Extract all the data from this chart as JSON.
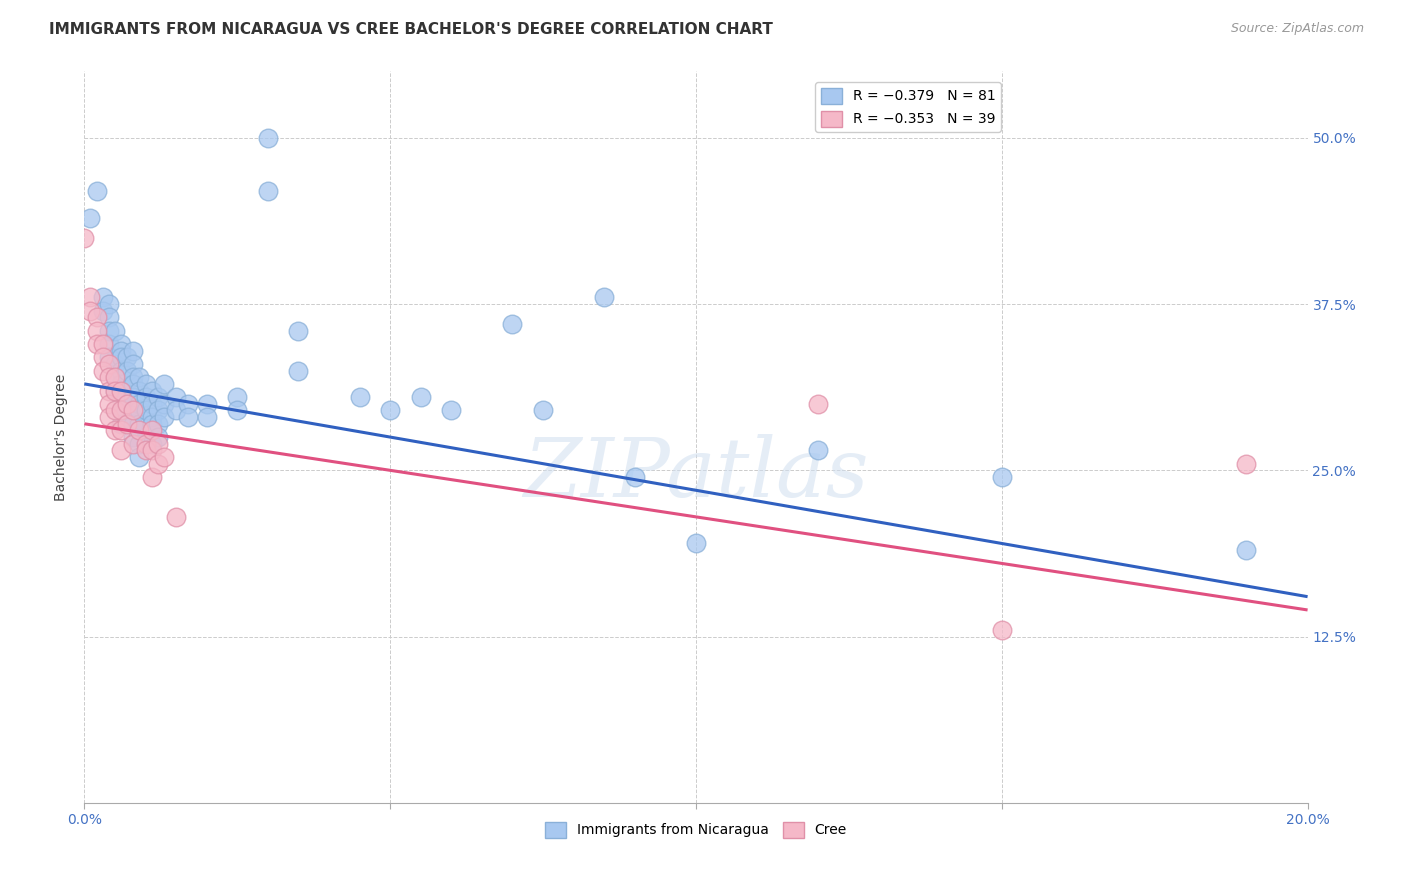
{
  "title": "IMMIGRANTS FROM NICARAGUA VS CREE BACHELOR'S DEGREE CORRELATION CHART",
  "source": "Source: ZipAtlas.com",
  "ylabel": "Bachelor's Degree",
  "xmin": 0.0,
  "xmax": 0.2,
  "ymin": 0.0,
  "ymax": 0.55,
  "yticks": [
    0.125,
    0.25,
    0.375,
    0.5
  ],
  "ytick_labels": [
    "12.5%",
    "25.0%",
    "37.5%",
    "50.0%"
  ],
  "xticks": [
    0.0,
    0.05,
    0.1,
    0.15,
    0.2
  ],
  "xtick_labels": [
    "0.0%",
    "",
    "",
    "",
    "20.0%"
  ],
  "series1_color": "#a8c8f0",
  "series2_color": "#f5b8c8",
  "line1_color": "#3060c0",
  "line2_color": "#e05080",
  "series1_points": [
    [
      0.001,
      0.44
    ],
    [
      0.002,
      0.46
    ],
    [
      0.003,
      0.38
    ],
    [
      0.003,
      0.37
    ],
    [
      0.004,
      0.375
    ],
    [
      0.004,
      0.365
    ],
    [
      0.004,
      0.355
    ],
    [
      0.004,
      0.345
    ],
    [
      0.004,
      0.335
    ],
    [
      0.005,
      0.355
    ],
    [
      0.005,
      0.33
    ],
    [
      0.005,
      0.32
    ],
    [
      0.005,
      0.31
    ],
    [
      0.006,
      0.345
    ],
    [
      0.006,
      0.34
    ],
    [
      0.006,
      0.335
    ],
    [
      0.006,
      0.325
    ],
    [
      0.006,
      0.315
    ],
    [
      0.006,
      0.305
    ],
    [
      0.006,
      0.295
    ],
    [
      0.006,
      0.285
    ],
    [
      0.007,
      0.335
    ],
    [
      0.007,
      0.325
    ],
    [
      0.008,
      0.34
    ],
    [
      0.008,
      0.33
    ],
    [
      0.008,
      0.32
    ],
    [
      0.008,
      0.315
    ],
    [
      0.008,
      0.305
    ],
    [
      0.008,
      0.295
    ],
    [
      0.008,
      0.285
    ],
    [
      0.008,
      0.275
    ],
    [
      0.009,
      0.32
    ],
    [
      0.009,
      0.31
    ],
    [
      0.009,
      0.3
    ],
    [
      0.009,
      0.295
    ],
    [
      0.009,
      0.285
    ],
    [
      0.009,
      0.27
    ],
    [
      0.009,
      0.26
    ],
    [
      0.01,
      0.315
    ],
    [
      0.01,
      0.305
    ],
    [
      0.01,
      0.295
    ],
    [
      0.011,
      0.31
    ],
    [
      0.011,
      0.3
    ],
    [
      0.011,
      0.29
    ],
    [
      0.011,
      0.285
    ],
    [
      0.011,
      0.27
    ],
    [
      0.012,
      0.305
    ],
    [
      0.012,
      0.295
    ],
    [
      0.012,
      0.285
    ],
    [
      0.012,
      0.275
    ],
    [
      0.013,
      0.315
    ],
    [
      0.013,
      0.3
    ],
    [
      0.013,
      0.29
    ],
    [
      0.015,
      0.305
    ],
    [
      0.015,
      0.295
    ],
    [
      0.017,
      0.3
    ],
    [
      0.017,
      0.29
    ],
    [
      0.02,
      0.3
    ],
    [
      0.02,
      0.29
    ],
    [
      0.025,
      0.305
    ],
    [
      0.025,
      0.295
    ],
    [
      0.03,
      0.5
    ],
    [
      0.03,
      0.46
    ],
    [
      0.035,
      0.355
    ],
    [
      0.035,
      0.325
    ],
    [
      0.045,
      0.305
    ],
    [
      0.05,
      0.295
    ],
    [
      0.055,
      0.305
    ],
    [
      0.06,
      0.295
    ],
    [
      0.07,
      0.36
    ],
    [
      0.075,
      0.295
    ],
    [
      0.085,
      0.38
    ],
    [
      0.09,
      0.245
    ],
    [
      0.1,
      0.195
    ],
    [
      0.12,
      0.265
    ],
    [
      0.15,
      0.245
    ],
    [
      0.19,
      0.19
    ]
  ],
  "series2_points": [
    [
      0.0,
      0.425
    ],
    [
      0.001,
      0.38
    ],
    [
      0.001,
      0.37
    ],
    [
      0.002,
      0.365
    ],
    [
      0.002,
      0.355
    ],
    [
      0.002,
      0.345
    ],
    [
      0.003,
      0.345
    ],
    [
      0.003,
      0.335
    ],
    [
      0.003,
      0.325
    ],
    [
      0.004,
      0.33
    ],
    [
      0.004,
      0.32
    ],
    [
      0.004,
      0.31
    ],
    [
      0.004,
      0.3
    ],
    [
      0.004,
      0.29
    ],
    [
      0.005,
      0.32
    ],
    [
      0.005,
      0.31
    ],
    [
      0.005,
      0.295
    ],
    [
      0.005,
      0.28
    ],
    [
      0.006,
      0.31
    ],
    [
      0.006,
      0.295
    ],
    [
      0.006,
      0.28
    ],
    [
      0.006,
      0.265
    ],
    [
      0.007,
      0.3
    ],
    [
      0.007,
      0.285
    ],
    [
      0.008,
      0.295
    ],
    [
      0.008,
      0.27
    ],
    [
      0.009,
      0.28
    ],
    [
      0.01,
      0.27
    ],
    [
      0.01,
      0.265
    ],
    [
      0.011,
      0.28
    ],
    [
      0.011,
      0.265
    ],
    [
      0.011,
      0.245
    ],
    [
      0.012,
      0.27
    ],
    [
      0.012,
      0.255
    ],
    [
      0.013,
      0.26
    ],
    [
      0.015,
      0.215
    ],
    [
      0.12,
      0.3
    ],
    [
      0.15,
      0.13
    ],
    [
      0.19,
      0.255
    ]
  ],
  "line1_x0": 0.0,
  "line1_y0": 0.315,
  "line1_x1": 0.2,
  "line1_y1": 0.155,
  "line2_x0": 0.0,
  "line2_y0": 0.285,
  "line2_x1": 0.2,
  "line2_y1": 0.145,
  "watermark": "ZIPatlas",
  "background_color": "#ffffff",
  "grid_color": "#cccccc",
  "title_fontsize": 11,
  "axis_label_fontsize": 10,
  "tick_fontsize": 10,
  "legend_fontsize": 10,
  "source_fontsize": 9
}
